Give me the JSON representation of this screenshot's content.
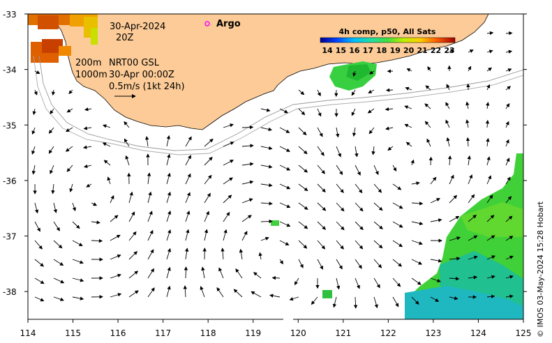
{
  "map": {
    "lon_range": [
      114,
      125
    ],
    "lat_range": [
      -38.5,
      -33
    ],
    "lon_ticks": [
      "114",
      "115",
      "116",
      "117",
      "118",
      "119",
      "120",
      "121",
      "122",
      "123",
      "124",
      "125"
    ],
    "lat_ticks": [
      "-33",
      "-34",
      "-35",
      "-36",
      "-37",
      "-38"
    ]
  },
  "annotations": {
    "date": "30-Apr-2024",
    "time": "20Z",
    "argo_label": "Argo",
    "gsl_line1_depth": "200m",
    "gsl_line1_text": "NRT00 GSL",
    "gsl_line2_depth": "1000m",
    "gsl_line2_text": "30-Apr 00:00Z",
    "current_scale": "0.5m/s (1kt 24h)"
  },
  "colorbar": {
    "title": "4h comp, p50, All Sats",
    "labels": [
      "14",
      "15",
      "16",
      "17",
      "18",
      "19",
      "20",
      "21",
      "22",
      "23"
    ]
  },
  "credit": "© IMOS 03-May-2024 15:28 Hobart",
  "colors": {
    "land": "#fccb97",
    "argo_marker": "#ff00ff"
  }
}
